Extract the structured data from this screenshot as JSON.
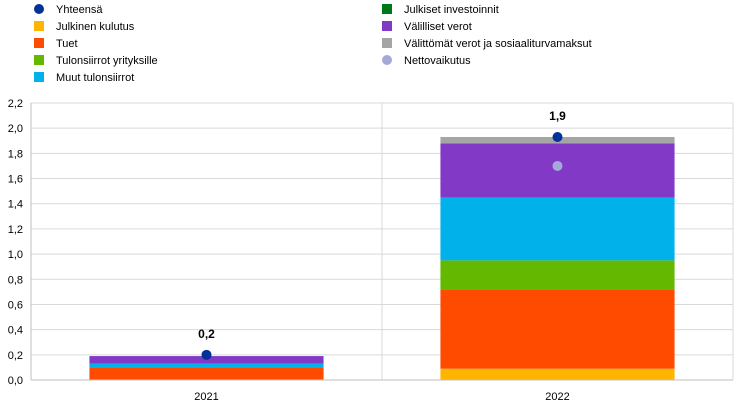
{
  "chart_data": {
    "type": "bar",
    "stacked": true,
    "categories": [
      "2021",
      "2022"
    ],
    "series": [
      {
        "name": "Julkinen kulutus",
        "marker": "square",
        "color": "#FFB400",
        "values": [
          0.0,
          0.09
        ]
      },
      {
        "name": "Tuet",
        "marker": "square",
        "color": "#FF4B00",
        "values": [
          0.1,
          0.63
        ]
      },
      {
        "name": "Tulonsiirrot yrityksille",
        "marker": "square",
        "color": "#65B800",
        "values": [
          0.0,
          0.23
        ]
      },
      {
        "name": "Muut tulonsiirrot",
        "marker": "square",
        "color": "#00B1EA",
        "values": [
          0.03,
          0.5
        ]
      },
      {
        "name": "Julkiset investoinnit",
        "marker": "square",
        "color": "#007816",
        "values": [
          0.0,
          0.0
        ]
      },
      {
        "name": "Välilliset verot",
        "marker": "square",
        "color": "#8139C6",
        "values": [
          0.06,
          0.43
        ]
      },
      {
        "name": "Välittömät verot ja sosiaaliturvamaksut",
        "marker": "square",
        "color": "#A5A5A5",
        "values": [
          0.0,
          0.05
        ]
      }
    ],
    "points": [
      {
        "name": "Yhteensä",
        "marker": "dot",
        "color": "#003299",
        "values": [
          0.2,
          1.93
        ],
        "labels": [
          "0,2",
          "1,9"
        ]
      },
      {
        "name": "Nettovaikutus",
        "marker": "dot",
        "color": "#A4A9D8",
        "values": [
          null,
          1.7
        ]
      }
    ],
    "legend_order": [
      "Yhteensä",
      "Julkinen kulutus",
      "Tuet",
      "Tulonsiirrot yrityksille",
      "Muut tulonsiirrot",
      "Julkiset investoinnit",
      "Välilliset verot",
      "Välittömät verot ja sosiaaliturvamaksut",
      "Nettovaikutus"
    ],
    "legend_placement": "top, two columns",
    "ylim": [
      0,
      2.2
    ],
    "yticks": [
      "0,0",
      "0,2",
      "0,4",
      "0,6",
      "0,8",
      "1,0",
      "1,2",
      "1,4",
      "1,6",
      "1,8",
      "2,0",
      "2,2"
    ],
    "grid": true,
    "title": "",
    "xlabel": "",
    "ylabel": ""
  }
}
